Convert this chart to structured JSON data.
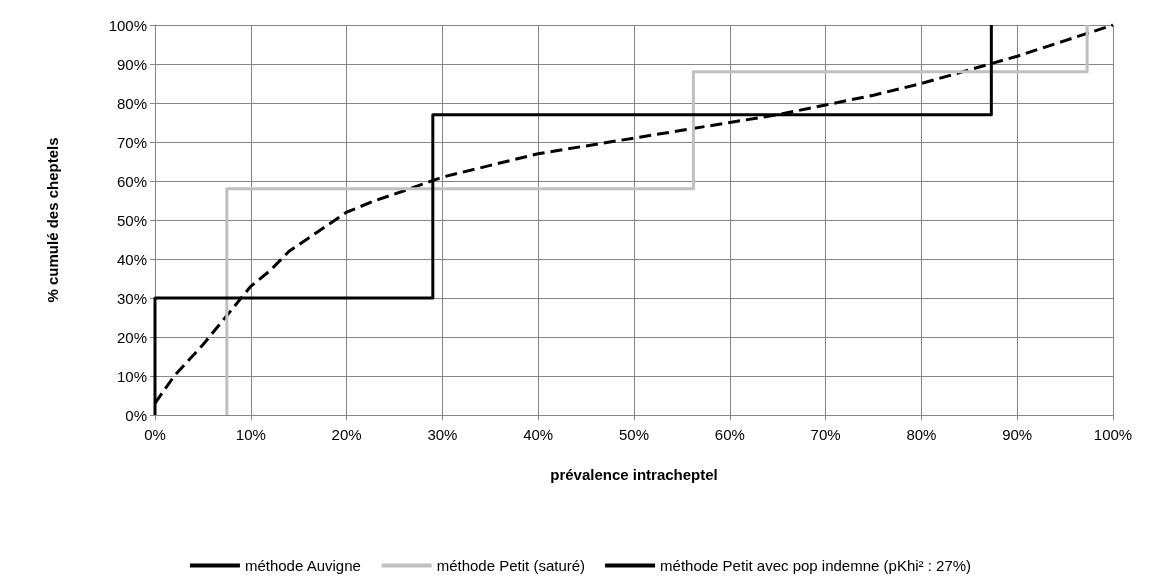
{
  "chart_data": {
    "type": "line",
    "xlabel": "prévalence intracheptel",
    "ylabel": "% cumulé des cheptels",
    "xlim": [
      0,
      100
    ],
    "xticks": [
      {
        "value": 0,
        "label": "0%"
      },
      {
        "value": 10,
        "label": "10%"
      },
      {
        "value": 20,
        "label": "20%"
      },
      {
        "value": 30,
        "label": "30%"
      },
      {
        "value": 40,
        "label": "40%"
      },
      {
        "value": 50,
        "label": "50%"
      },
      {
        "value": 60,
        "label": "60%"
      },
      {
        "value": 70,
        "label": "70%"
      },
      {
        "value": 80,
        "label": "80%"
      },
      {
        "value": 90,
        "label": "90%"
      },
      {
        "value": 100,
        "label": "100%"
      }
    ],
    "ylim": [
      0,
      100
    ],
    "yticks": [
      {
        "value": 0,
        "label": "0%"
      },
      {
        "value": 10,
        "label": "10%"
      },
      {
        "value": 20,
        "label": "20%"
      },
      {
        "value": 30,
        "label": "30%"
      },
      {
        "value": 40,
        "label": "40%"
      },
      {
        "value": 50,
        "label": "50%"
      },
      {
        "value": 60,
        "label": "60%"
      },
      {
        "value": 70,
        "label": "70%"
      },
      {
        "value": 80,
        "label": "80%"
      },
      {
        "value": 90,
        "label": "90%"
      },
      {
        "value": 100,
        "label": "100%"
      }
    ],
    "grid": true,
    "legend": "bottom",
    "marker": "none",
    "series": [
      {
        "name": "méthode Auvigne",
        "color": "#000000",
        "line_style": "dashed",
        "x": [
          0,
          2,
          5,
          8,
          10,
          12,
          14,
          17,
          20,
          23,
          26,
          30,
          35,
          40,
          45,
          50,
          55,
          60,
          65,
          70,
          75,
          80,
          85,
          90,
          95,
          100
        ],
        "values": [
          3,
          10,
          18,
          27,
          33,
          37,
          42,
          47,
          52,
          55,
          57.5,
          61,
          64,
          67,
          69,
          71,
          73,
          75,
          77,
          79.5,
          82,
          85,
          88.5,
          92,
          96,
          100
        ]
      },
      {
        "name": "méthode Petit (saturé)",
        "color": "#c0c0c0",
        "line_style": "solid",
        "x": [
          7.5,
          7.5,
          56.2,
          56.2,
          97.3,
          97.3
        ],
        "values": [
          0,
          58,
          58,
          88,
          88,
          100
        ]
      },
      {
        "name": "méthode Petit avec pop indemne (pKhi² : 27%)",
        "color": "#000000",
        "line_style": "solid",
        "x": [
          0,
          0,
          29,
          29,
          87.3,
          87.3
        ],
        "values": [
          0,
          30,
          30,
          77,
          77,
          100
        ]
      }
    ]
  }
}
